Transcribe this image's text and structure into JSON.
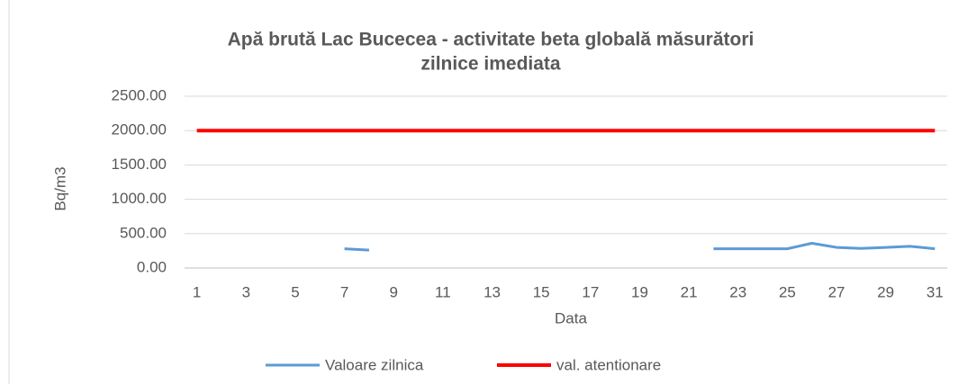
{
  "chart_data": {
    "type": "line",
    "title": [
      "Apă brută Lac Bucecea - activitate beta globală măsurători",
      "zilnice imediata"
    ],
    "x_label": "Data",
    "y_label": "Bq/m3",
    "categories": [
      1,
      null,
      3,
      null,
      5,
      null,
      7,
      null,
      9,
      null,
      11,
      null,
      13,
      null,
      15,
      null,
      17,
      null,
      19,
      null,
      21,
      null,
      23,
      null,
      25,
      null,
      27,
      null,
      29,
      null,
      31
    ],
    "series": [
      {
        "name": "Valoare zilnica",
        "color": "#5b9bd5",
        "values": [
          null,
          null,
          null,
          null,
          null,
          null,
          280,
          260,
          null,
          null,
          null,
          null,
          null,
          null,
          null,
          null,
          null,
          null,
          null,
          null,
          null,
          280,
          280,
          280,
          280,
          360,
          300,
          285,
          300,
          315,
          280
        ]
      },
      {
        "name": "val. atentionare",
        "color": "#ff0000",
        "values": [
          2000,
          2000,
          2000,
          2000,
          2000,
          2000,
          2000,
          2000,
          2000,
          2000,
          2000,
          2000,
          2000,
          2000,
          2000,
          2000,
          2000,
          2000,
          2000,
          2000,
          2000,
          2000,
          2000,
          2000,
          2000,
          2000,
          2000,
          2000,
          2000,
          2000,
          2000
        ]
      }
    ],
    "ylim": [
      0,
      2500
    ],
    "yticks": [
      {
        "value": 0,
        "label": "0.00"
      },
      {
        "value": 500,
        "label": "500.00"
      },
      {
        "value": 1000,
        "label": "1000.00"
      },
      {
        "value": 1500,
        "label": "1500.00"
      },
      {
        "value": 2000,
        "label": "2000.00"
      },
      {
        "value": 2500,
        "label": "2500.00"
      }
    ],
    "grid": true,
    "legend": "bottom"
  }
}
